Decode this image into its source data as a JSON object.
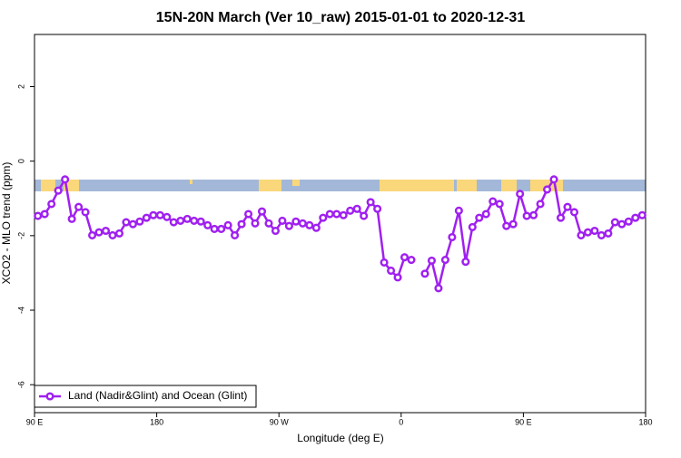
{
  "chart_data": {
    "type": "line",
    "title": "15N-20N March (Ver 10_raw)   2015-01-01 to 2020-12-31",
    "x_label": "Longitude (deg E)",
    "y_label": "XCO2 - MLO trend (ppm)",
    "xlim": [
      -270,
      180
    ],
    "xticks": [
      {
        "value": -270,
        "label": "90 E"
      },
      {
        "value": -180,
        "label": "180"
      },
      {
        "value": -90,
        "label": "90 W"
      },
      0,
      {
        "value": 90,
        "label": "90 E"
      },
      180
    ],
    "ylim": [
      -6.75,
      3.4
    ],
    "yticks": [
      2,
      0,
      -2,
      -4,
      -6
    ],
    "legend": "bottom-left",
    "x": [
      -267.5,
      -262.5,
      -257.5,
      -252.5,
      -247.5,
      -242.5,
      -237.5,
      -232.5,
      -227.5,
      -222.5,
      -217.5,
      -212.5,
      -207.5,
      -202.5,
      -197.5,
      -192.5,
      -187.5,
      -182.5,
      -177.5,
      -172.5,
      -167.5,
      -162.5,
      -157.5,
      -152.5,
      -147.5,
      -142.5,
      -137.5,
      -132.5,
      -127.5,
      -122.5,
      -117.5,
      -112.5,
      -107.5,
      -102.5,
      -97.5,
      -92.5,
      -87.5,
      -82.5,
      -77.5,
      -72.5,
      -67.5,
      -62.5,
      -57.5,
      -52.5,
      -47.5,
      -42.5,
      -37.5,
      -32.5,
      -27.5,
      -22.5,
      -17.5,
      -12.5,
      -7.5,
      -2.5,
      2.5,
      7.5,
      12.5,
      17.5,
      22.5,
      27.5,
      32.5,
      37.5,
      42.5,
      47.5,
      52.5,
      57.5,
      62.5,
      67.5,
      72.5,
      77.5,
      82.5,
      87.5,
      92.5,
      97.5,
      102.5,
      107.5,
      112.5,
      117.5,
      122.5,
      127.5,
      132.5,
      137.5,
      142.5,
      147.5,
      152.5,
      157.5,
      162.5,
      167.5,
      172.5,
      177.5
    ],
    "series": [
      {
        "name": "Land (Nadir&Glint) and Ocean (Glint)",
        "color": "#a020f0",
        "values": [
          -1.47,
          -1.42,
          -1.15,
          -0.79,
          -0.49,
          -1.55,
          -1.23,
          -1.37,
          -1.99,
          -1.91,
          -1.87,
          -1.99,
          -1.94,
          -1.64,
          -1.69,
          -1.62,
          -1.52,
          -1.45,
          -1.45,
          -1.5,
          -1.64,
          -1.6,
          -1.55,
          -1.6,
          -1.62,
          -1.72,
          -1.82,
          -1.82,
          -1.72,
          -1.99,
          -1.69,
          -1.42,
          -1.67,
          -1.35,
          -1.67,
          -1.87,
          -1.6,
          -1.74,
          -1.62,
          -1.67,
          -1.72,
          -1.79,
          -1.52,
          -1.42,
          -1.42,
          -1.45,
          -1.33,
          -1.28,
          -1.47,
          -1.1,
          -1.28,
          -2.72,
          -2.94,
          -3.12,
          -2.58,
          -2.65,
          null,
          -3.02,
          -2.67,
          -3.41,
          -2.65,
          -2.04,
          -1.33,
          -2.7,
          -1.77,
          -1.52,
          -1.42,
          -1.08,
          -1.15,
          -1.74,
          -1.69,
          -0.88,
          -1.47,
          -1.45,
          -1.15,
          -0.76,
          -0.49,
          -1.52,
          -1.23,
          -1.37,
          -1.99,
          -1.91,
          -1.87,
          -1.99,
          -1.94,
          -1.64,
          -1.69,
          -1.62,
          -1.52,
          -1.45
        ]
      }
    ]
  }
}
